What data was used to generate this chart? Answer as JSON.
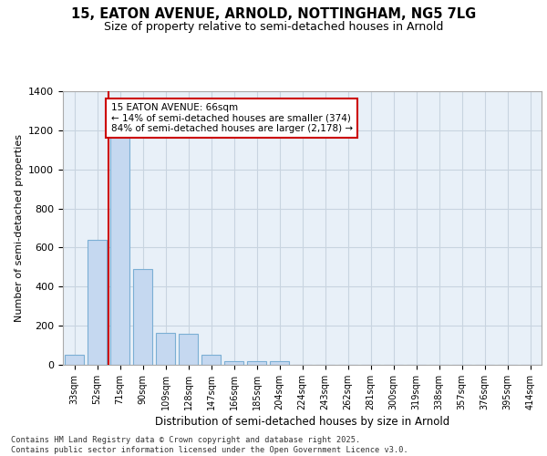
{
  "title_line1": "15, EATON AVENUE, ARNOLD, NOTTINGHAM, NG5 7LG",
  "title_line2": "Size of property relative to semi-detached houses in Arnold",
  "xlabel": "Distribution of semi-detached houses by size in Arnold",
  "ylabel": "Number of semi-detached properties",
  "categories": [
    "33sqm",
    "52sqm",
    "71sqm",
    "90sqm",
    "109sqm",
    "128sqm",
    "147sqm",
    "166sqm",
    "185sqm",
    "204sqm",
    "224sqm",
    "243sqm",
    "262sqm",
    "281sqm",
    "300sqm",
    "319sqm",
    "338sqm",
    "357sqm",
    "376sqm",
    "395sqm",
    "414sqm"
  ],
  "values": [
    50,
    640,
    1180,
    490,
    165,
    160,
    50,
    20,
    20,
    20,
    0,
    0,
    0,
    0,
    0,
    0,
    0,
    0,
    0,
    0,
    0
  ],
  "bar_color": "#c5d8f0",
  "bar_edge_color": "#7bafd4",
  "grid_color": "#c8d4e0",
  "bg_color": "#e8f0f8",
  "red_line_x": 1.5,
  "annotation_text": "15 EATON AVENUE: 66sqm\n← 14% of semi-detached houses are smaller (374)\n84% of semi-detached houses are larger (2,178) →",
  "annotation_box_color": "#ffffff",
  "annotation_border_color": "#cc0000",
  "ylim": [
    0,
    1400
  ],
  "yticks": [
    0,
    200,
    400,
    600,
    800,
    1000,
    1200,
    1400
  ],
  "footer_line1": "Contains HM Land Registry data © Crown copyright and database right 2025.",
  "footer_line2": "Contains public sector information licensed under the Open Government Licence v3.0."
}
